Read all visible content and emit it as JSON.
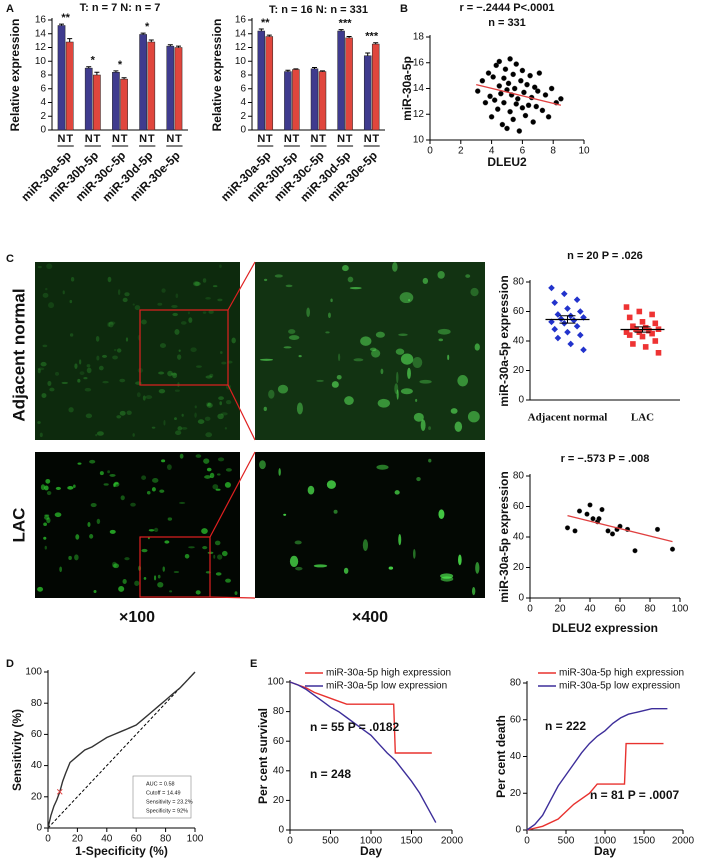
{
  "figure": {
    "panel_labels": [
      "A",
      "B",
      "C",
      "D",
      "E"
    ],
    "micrographs": {
      "row_labels": [
        "Adjacent normal",
        "LAC"
      ],
      "magnifications": [
        "×100",
        "×400"
      ]
    }
  },
  "chart_data": [
    {
      "type": "bar",
      "title": "T: n = 7 N: n = 7",
      "y_label": "Relative expression",
      "categories": [
        "miR-30a-5p",
        "miR-30b-5p",
        "miR-30c-5p",
        "miR-30d-5p",
        "miR-30e-5p"
      ],
      "series": [
        {
          "name": "N",
          "color": "#3f3b8e",
          "values": [
            15.2,
            9.0,
            8.4,
            13.9,
            12.2
          ],
          "errors": [
            0.2,
            0.2,
            0.2,
            0.2,
            0.2
          ]
        },
        {
          "name": "T",
          "color": "#e0463d",
          "values": [
            12.8,
            8.0,
            7.4,
            12.8,
            12.0
          ],
          "errors": [
            0.5,
            0.4,
            0.2,
            0.3,
            0.2
          ]
        }
      ],
      "annotations": [
        "**",
        "*",
        "*",
        "*",
        null
      ],
      "ylim": [
        0,
        16
      ],
      "yticks": [
        0,
        2,
        4,
        6,
        8,
        10,
        12,
        14,
        16
      ]
    },
    {
      "type": "bar",
      "title": "T: n = 16 N: n = 331",
      "y_label": "Relative expression",
      "categories": [
        "miR-30a-5p",
        "miR-30b-5p",
        "miR-30c-5p",
        "miR-30d-5p",
        "miR-30e-5p"
      ],
      "series": [
        {
          "name": "N",
          "color": "#3f3b8e",
          "values": [
            14.4,
            8.5,
            8.9,
            14.4,
            10.8
          ],
          "errors": [
            0.3,
            0.2,
            0.2,
            0.2,
            0.4
          ]
        },
        {
          "name": "T",
          "color": "#e0463d",
          "values": [
            13.6,
            8.8,
            8.5,
            13.4,
            12.5
          ],
          "errors": [
            0.2,
            0.1,
            0.1,
            0.2,
            0.2
          ]
        }
      ],
      "annotations": [
        "**",
        null,
        null,
        "***",
        "***"
      ],
      "ylim": [
        0,
        16
      ],
      "yticks": [
        0,
        2,
        4,
        6,
        8,
        10,
        12,
        14,
        16
      ]
    },
    {
      "type": "scatter",
      "title": "r = −.2444 P<.0001",
      "subtitle": "n = 331",
      "x_label": "DLEU2",
      "y_label": "miR-30a-5p",
      "color": "#000000",
      "x": [
        3.1,
        3.4,
        3.6,
        3.8,
        3.9,
        4.0,
        4.1,
        4.2,
        4.3,
        4.4,
        4.5,
        4.5,
        4.6,
        4.7,
        4.8,
        4.8,
        4.9,
        5.0,
        5.0,
        5.1,
        5.2,
        5.2,
        5.3,
        5.4,
        5.4,
        5.5,
        5.6,
        5.6,
        5.7,
        5.8,
        5.9,
        6.0,
        6.0,
        6.1,
        6.2,
        6.3,
        6.4,
        6.5,
        6.6,
        6.7,
        6.8,
        6.9,
        7.0,
        7.1,
        7.3,
        7.5,
        7.7,
        7.9,
        8.2,
        8.5
      ],
      "values": [
        13.8,
        14.6,
        12.9,
        15.2,
        13.4,
        11.8,
        14.9,
        13.1,
        15.8,
        12.4,
        14.2,
        16.1,
        13.6,
        11.2,
        14.8,
        12.9,
        15.5,
        13.9,
        10.9,
        14.4,
        12.2,
        16.3,
        13.5,
        15.1,
        11.6,
        14.0,
        12.8,
        15.9,
        13.2,
        10.7,
        14.6,
        12.5,
        15.4,
        13.7,
        11.9,
        14.3,
        12.7,
        15.0,
        13.3,
        11.4,
        14.1,
        12.6,
        13.8,
        15.2,
        12.3,
        13.5,
        11.8,
        14.0,
        12.9,
        13.2
      ],
      "fit": {
        "color": "#e04040",
        "x": [
          3,
          8.5
        ],
        "values": [
          14.3,
          12.7
        ]
      },
      "xlim": [
        0,
        10
      ],
      "xticks": [
        0,
        2,
        4,
        6,
        8,
        10
      ],
      "ylim": [
        10,
        18
      ],
      "yticks": [
        10,
        12,
        14,
        16,
        18
      ]
    },
    {
      "type": "strip",
      "title": "n = 20 P = .026",
      "y_label": "miR-30a-5p expression",
      "categories": [
        "Adjacent normal",
        "LAC"
      ],
      "groups": [
        {
          "color": "#2233cc",
          "values": [
            76,
            72,
            68,
            66,
            62,
            60,
            58,
            57,
            56,
            55,
            54,
            53,
            52,
            50,
            48,
            46,
            44,
            42,
            38,
            34
          ],
          "mean": 54.6,
          "sem": 2.5
        },
        {
          "color": "#ee3333",
          "values": [
            63,
            60,
            58,
            56,
            53,
            52,
            50,
            49,
            48,
            48,
            47,
            46,
            46,
            45,
            44,
            43,
            40,
            38,
            36,
            32
          ],
          "mean": 47.8,
          "sem": 1.8
        }
      ],
      "ylim": [
        0,
        80
      ],
      "yticks": [
        0,
        20,
        40,
        60,
        80
      ]
    },
    {
      "type": "scatter",
      "title": "r = −.573 P = .008",
      "x_label": "DLEU2 expression",
      "y_label": "miR-30a-5p expression",
      "color": "#000000",
      "x": [
        25,
        30,
        33,
        38,
        40,
        42,
        45,
        46,
        48,
        52,
        55,
        58,
        60,
        65,
        70,
        85,
        95
      ],
      "values": [
        46,
        44,
        57,
        55,
        61,
        52,
        50,
        52,
        58,
        44,
        42,
        45,
        47,
        45,
        31,
        45,
        32
      ],
      "fit": {
        "color": "#e04040",
        "x": [
          25,
          95
        ],
        "values": [
          54,
          37
        ]
      },
      "xlim": [
        0,
        100
      ],
      "xticks": [
        0,
        20,
        40,
        60,
        80,
        100
      ],
      "ylim": [
        0,
        80
      ],
      "yticks": [
        0,
        20,
        40,
        60,
        80
      ]
    },
    {
      "type": "line",
      "x_label": "1-Specificity (%)",
      "y_label": "Sensitivity (%)",
      "color": "#333333",
      "x": [
        0,
        2,
        4,
        6,
        8,
        10,
        12,
        15,
        20,
        25,
        30,
        35,
        40,
        45,
        50,
        55,
        60,
        65,
        70,
        75,
        80,
        85,
        90,
        95,
        100
      ],
      "values": [
        0,
        8,
        14,
        18,
        23.2,
        30,
        35,
        42,
        46,
        50,
        52,
        55,
        58,
        60,
        62,
        64,
        66,
        70,
        74,
        78,
        82,
        86,
        90,
        95,
        100
      ],
      "reference_line": {
        "x": [
          0,
          100
        ],
        "values": [
          0,
          100
        ]
      },
      "cutoff_point": {
        "x": 8,
        "y": 23.2,
        "color": "#e04040"
      },
      "legend_lines": [
        "AUC = 0.58",
        "Cutoff = 14.49",
        "Sensitivity = 23.2%",
        "Specificity = 92%"
      ],
      "xlim": [
        0,
        100
      ],
      "xticks": [
        0,
        20,
        40,
        60,
        80,
        100
      ],
      "ylim": [
        0,
        100
      ],
      "yticks": [
        0,
        20,
        40,
        60,
        80,
        100
      ]
    },
    {
      "type": "line",
      "x_label": "Day",
      "y_label": "Per cent survival",
      "series": [
        {
          "name": "miR-30a-5p high expression",
          "color": "#e8322f",
          "x": [
            0,
            100,
            200,
            300,
            450,
            550,
            700,
            1280,
            1300,
            1750
          ],
          "values": [
            100,
            98,
            96,
            93,
            90,
            88,
            85,
            85,
            52,
            52
          ]
        },
        {
          "name": "miR-30a-5p low expression",
          "color": "#3d2e9a",
          "x": [
            0,
            100,
            200,
            300,
            400,
            500,
            600,
            700,
            800,
            900,
            1000,
            1100,
            1200,
            1300,
            1400,
            1500,
            1600,
            1700,
            1800
          ],
          "values": [
            100,
            98,
            95,
            91,
            87,
            83,
            80,
            76,
            72,
            68,
            64,
            58,
            52,
            47,
            40,
            33,
            25,
            15,
            5
          ]
        }
      ],
      "annotations": [
        "n = 55 P = .0182",
        "n = 248"
      ],
      "xlim": [
        0,
        2000
      ],
      "xticks": [
        0,
        500,
        1000,
        1500,
        2000
      ],
      "ylim": [
        0,
        100
      ],
      "yticks": [
        0,
        20,
        40,
        60,
        80,
        100
      ]
    },
    {
      "type": "line",
      "x_label": "Day",
      "y_label": "Per cent death",
      "series": [
        {
          "name": "miR-30a-5p high expression",
          "color": "#e8322f",
          "x": [
            0,
            200,
            400,
            500,
            600,
            800,
            900,
            1250,
            1270,
            1750
          ],
          "values": [
            0,
            2,
            6,
            10,
            14,
            20,
            25,
            25,
            47,
            47
          ]
        },
        {
          "name": "miR-30a-5p low expression",
          "color": "#3d2e9a",
          "x": [
            0,
            100,
            200,
            300,
            400,
            500,
            600,
            700,
            800,
            900,
            1000,
            1100,
            1200,
            1300,
            1400,
            1500,
            1600,
            1800
          ],
          "values": [
            0,
            3,
            8,
            16,
            24,
            30,
            36,
            42,
            47,
            51,
            54,
            58,
            61,
            63,
            64,
            65,
            66,
            66
          ]
        }
      ],
      "annotations": [
        "n = 222",
        "n = 81 P = .0007"
      ],
      "xlim": [
        0,
        2000
      ],
      "xticks": [
        0,
        500,
        1000,
        1500,
        2000
      ],
      "ylim": [
        0,
        80
      ],
      "yticks": [
        0,
        20,
        40,
        60,
        80
      ]
    }
  ]
}
